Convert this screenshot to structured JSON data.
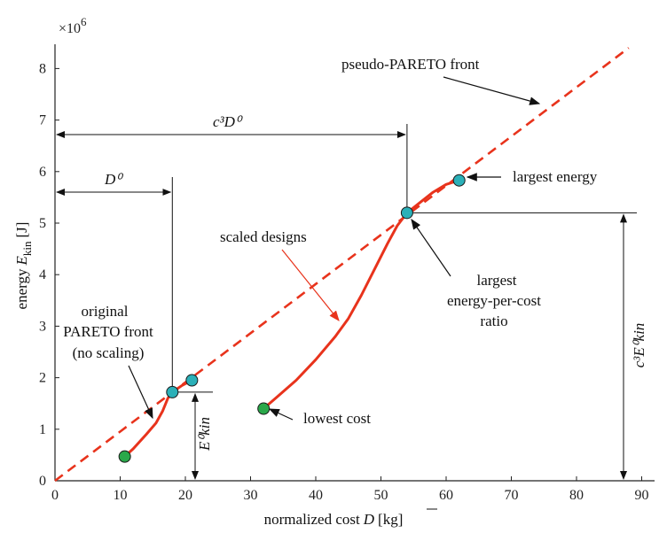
{
  "chart_data": {
    "type": "line",
    "axis_multiplier": "×10",
    "axis_multiplier_exp": "6",
    "xlabel": "normalized cost",
    "xlabel_symbol": "D",
    "xlabel_unit": "[kg]",
    "ylabel_prefix": "energy",
    "ylabel_symbol": "E",
    "ylabel_sub": "kin",
    "ylabel_unit": "[J]",
    "xlim": [
      0,
      92
    ],
    "ylim": [
      0,
      8.5
    ],
    "x_ticks": [
      0,
      10,
      20,
      30,
      40,
      50,
      60,
      70,
      80,
      90
    ],
    "y_ticks": [
      0,
      1,
      2,
      3,
      4,
      5,
      6,
      7,
      8
    ],
    "series": [
      {
        "name": "original PARETO front (no scaling)",
        "color": "#e8331c",
        "points": [
          [
            10.7,
            0.47
          ],
          [
            12,
            0.62
          ],
          [
            14,
            0.9
          ],
          [
            15.5,
            1.12
          ],
          [
            16.5,
            1.35
          ],
          [
            17.3,
            1.6
          ],
          [
            18,
            1.72
          ],
          [
            19.5,
            1.85
          ],
          [
            21,
            1.95
          ]
        ]
      },
      {
        "name": "scaled designs",
        "color": "#e8331c",
        "points": [
          [
            32,
            1.4
          ],
          [
            34,
            1.62
          ],
          [
            37,
            1.95
          ],
          [
            40,
            2.35
          ],
          [
            43,
            2.8
          ],
          [
            45,
            3.15
          ],
          [
            47,
            3.6
          ],
          [
            49,
            4.1
          ],
          [
            51,
            4.6
          ],
          [
            52.5,
            4.95
          ],
          [
            54,
            5.2
          ],
          [
            56,
            5.4
          ],
          [
            58,
            5.6
          ],
          [
            60,
            5.75
          ],
          [
            62,
            5.83
          ]
        ]
      }
    ],
    "pseudo_front": {
      "label": "pseudo-PARETO front",
      "color": "#e8331c",
      "x": [
        0,
        88
      ],
      "y": [
        0,
        8.4
      ]
    },
    "markers": [
      {
        "x": 10.7,
        "y": 0.47,
        "color": "#2aa84a"
      },
      {
        "x": 32,
        "y": 1.4,
        "color": "#2aa84a"
      },
      {
        "x": 18,
        "y": 1.72,
        "color": "#2bb0b8"
      },
      {
        "x": 21,
        "y": 1.95,
        "color": "#2bb0b8"
      },
      {
        "x": 54,
        "y": 5.2,
        "color": "#2bb0b8"
      },
      {
        "x": 62,
        "y": 5.83,
        "color": "#2bb0b8"
      }
    ],
    "annotations": {
      "pseudo_front": "pseudo-PARETO front",
      "largest_energy": "largest energy",
      "scaled_designs": "scaled designs",
      "largest_ratio_1": "largest",
      "largest_ratio_2": "energy-per-cost",
      "largest_ratio_3": "ratio",
      "original_1": "original",
      "original_2": "PARETO front",
      "original_3": "(no scaling)",
      "lowest_cost": "lowest cost",
      "dim_c3D0": "c³D⁰",
      "dim_D0": "D⁰",
      "dim_E0": "E⁰kin",
      "dim_c3E0": "c³E⁰kin"
    }
  }
}
